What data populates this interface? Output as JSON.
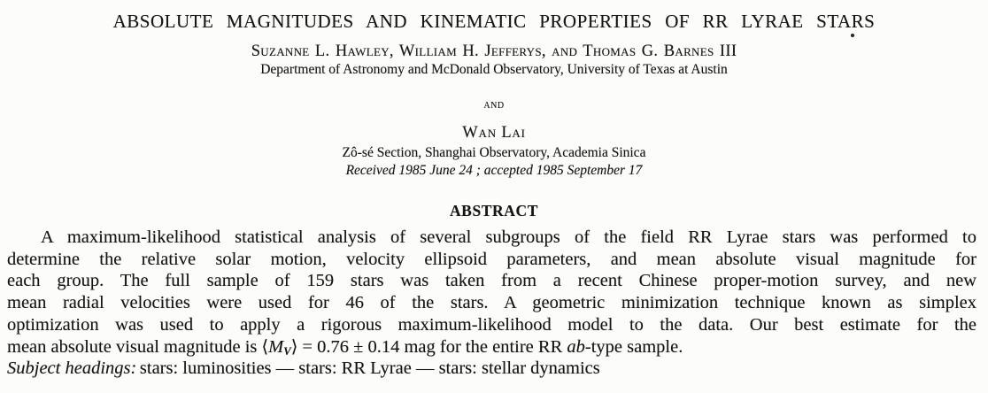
{
  "paper": {
    "title": "ABSOLUTE MAGNITUDES AND KINEMATIC PROPERTIES OF RR LYRAE STARS",
    "authors_line": "Suzanne L. Hawley, William H. Jefferys, and Thomas G. Barnes III",
    "authors_affiliation": "Department of Astronomy and McDonald Observatory, University of Texas at Austin",
    "and_connector": "and",
    "second_author": "Wan Lai",
    "second_affiliation": "Zô-sé Section, Shanghai Observatory, Academia Sinica",
    "received_line": "Received 1985 June 24 ; accepted 1985 September 17",
    "abstract": {
      "heading": "ABSTRACT",
      "justified_lines": [
        "A maximum-likelihood statistical analysis of several subgroups of the field RR Lyrae stars was performed to",
        "determine the relative solar motion, velocity ellipsoid parameters, and mean absolute visual magnitude for",
        "each group. The full sample of 159 stars was taken from a recent Chinese proper-motion survey, and new",
        "mean radial velocities were used for 46 of the stars. A geometric minimization technique known as simplex",
        "optimization was used to apply a rigorous maximum-likelihood model to the data. Our best estimate for the"
      ],
      "last_line": {
        "prefix": "mean absolute visual magnitude is ",
        "open_angle": "⟨",
        "mv_symbol": "M",
        "mv_subscript": "V",
        "close_angle": "⟩",
        "value_text": " = 0.76 ± 0.14 mag for the entire RR ",
        "type_word_italic": "ab",
        "suffix": "-type sample."
      },
      "subject_headings": {
        "label": "Subject headings:",
        "text": "stars: luminosities — stars: RR Lyrae — stars: stellar dynamics"
      }
    },
    "colors": {
      "page_background": "#fcfcfa",
      "ink": "#161514"
    }
  }
}
